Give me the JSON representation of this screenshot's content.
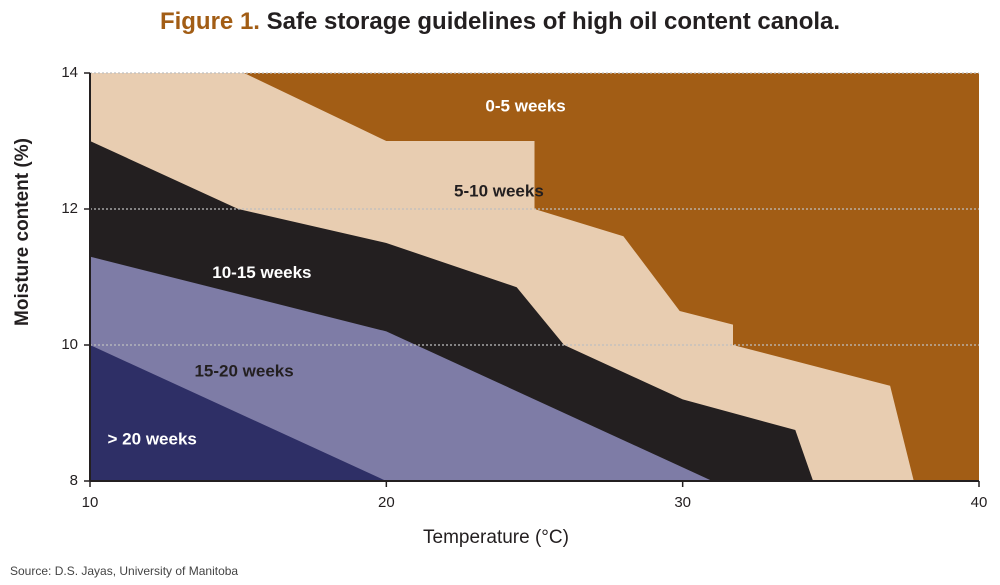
{
  "figure": {
    "number": "Figure 1.",
    "title": "Safe storage guidelines of high oil content canola.",
    "source": "Source: D.S. Jayas, University of Manitoba"
  },
  "chart_data": {
    "type": "area",
    "xlabel": "Temperature (°C)",
    "ylabel": "Moisture content (%)",
    "xlim": [
      10,
      40
    ],
    "ylim": [
      8,
      14
    ],
    "xticks": [
      "10",
      "20",
      "30",
      "40"
    ],
    "yticks": [
      "8",
      "10",
      "12",
      "14"
    ],
    "grid": "horizontal dotted at y ticks",
    "zones": [
      {
        "name": "0-5 weeks",
        "color": "#a25d15",
        "label_at": [
          24.7,
          13.5
        ],
        "label_color": "#ffffff",
        "polygon": [
          [
            10,
            8
          ],
          [
            40,
            8
          ],
          [
            40,
            14
          ],
          [
            10,
            14
          ]
        ]
      },
      {
        "name": "5-10 weeks",
        "color": "#e8cdb1",
        "label_at": [
          23.8,
          12.25
        ],
        "label_color": "#231f20",
        "polygon": [
          [
            10,
            14
          ],
          [
            15.2,
            14
          ],
          [
            20,
            13
          ],
          [
            25,
            13
          ],
          [
            25,
            12
          ],
          [
            28,
            11.6
          ],
          [
            29.9,
            10.5
          ],
          [
            31.7,
            10.3
          ],
          [
            31.7,
            10
          ],
          [
            37,
            9.4
          ],
          [
            37.8,
            8
          ],
          [
            10,
            8
          ]
        ]
      },
      {
        "name": "10-15 weeks",
        "color": "#231f20",
        "label_at": [
          15.8,
          11.05
        ],
        "label_color": "#ffffff",
        "polygon": [
          [
            10,
            13
          ],
          [
            15,
            12
          ],
          [
            20,
            11.5
          ],
          [
            24.4,
            10.85
          ],
          [
            26,
            10
          ],
          [
            30,
            9.2
          ],
          [
            33.8,
            8.75
          ],
          [
            34.4,
            8
          ],
          [
            10,
            8
          ]
        ]
      },
      {
        "name": "15-20 weeks",
        "color": "#7e7ca6",
        "label_at": [
          15.2,
          9.6
        ],
        "label_color": "#231f20",
        "polygon": [
          [
            10,
            11.3
          ],
          [
            20,
            10.2
          ],
          [
            21,
            10
          ],
          [
            31,
            8
          ],
          [
            10,
            8
          ]
        ]
      },
      {
        "name": "> 20 weeks",
        "color": "#2e2f66",
        "label_at": [
          12.1,
          8.6
        ],
        "label_color": "#ffffff",
        "polygon": [
          [
            10,
            10
          ],
          [
            20,
            8
          ],
          [
            10,
            8
          ]
        ]
      }
    ]
  }
}
